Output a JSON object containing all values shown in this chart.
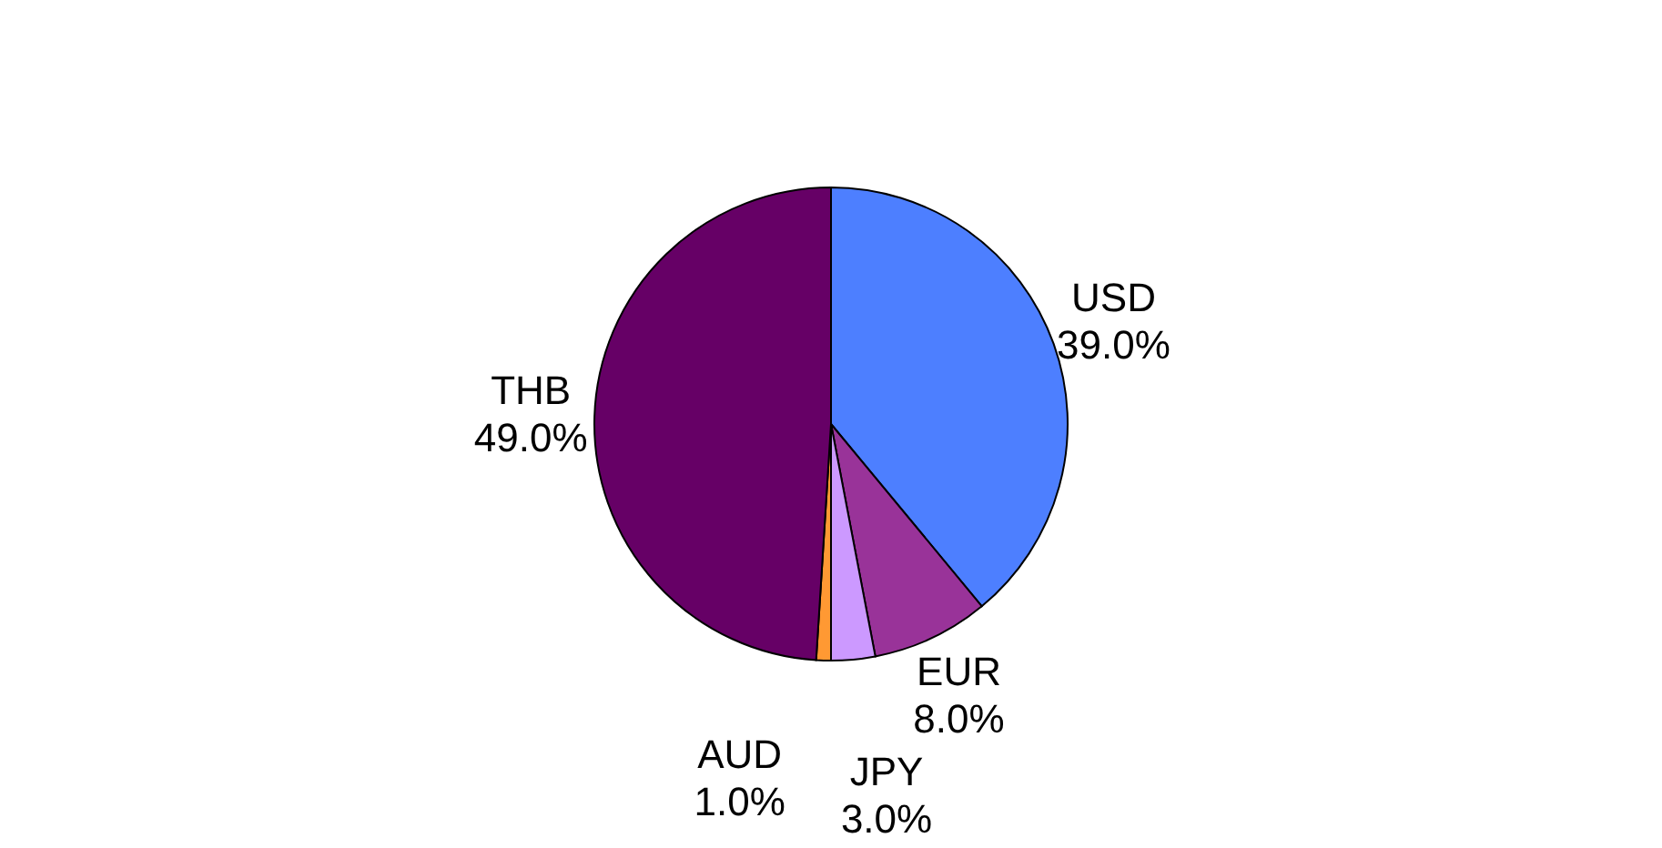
{
  "chart_data": {
    "type": "pie",
    "categories": [
      "USD",
      "EUR",
      "JPY",
      "AUD",
      "THB"
    ],
    "values": [
      39,
      8,
      3,
      1,
      49
    ],
    "value_labels": [
      "39.0%",
      "8.0%",
      "3.0%",
      "1.0%",
      "49.0%"
    ],
    "colors": [
      "#4d7fff",
      "#993399",
      "#cc99ff",
      "#ff9933",
      "#660066"
    ]
  }
}
